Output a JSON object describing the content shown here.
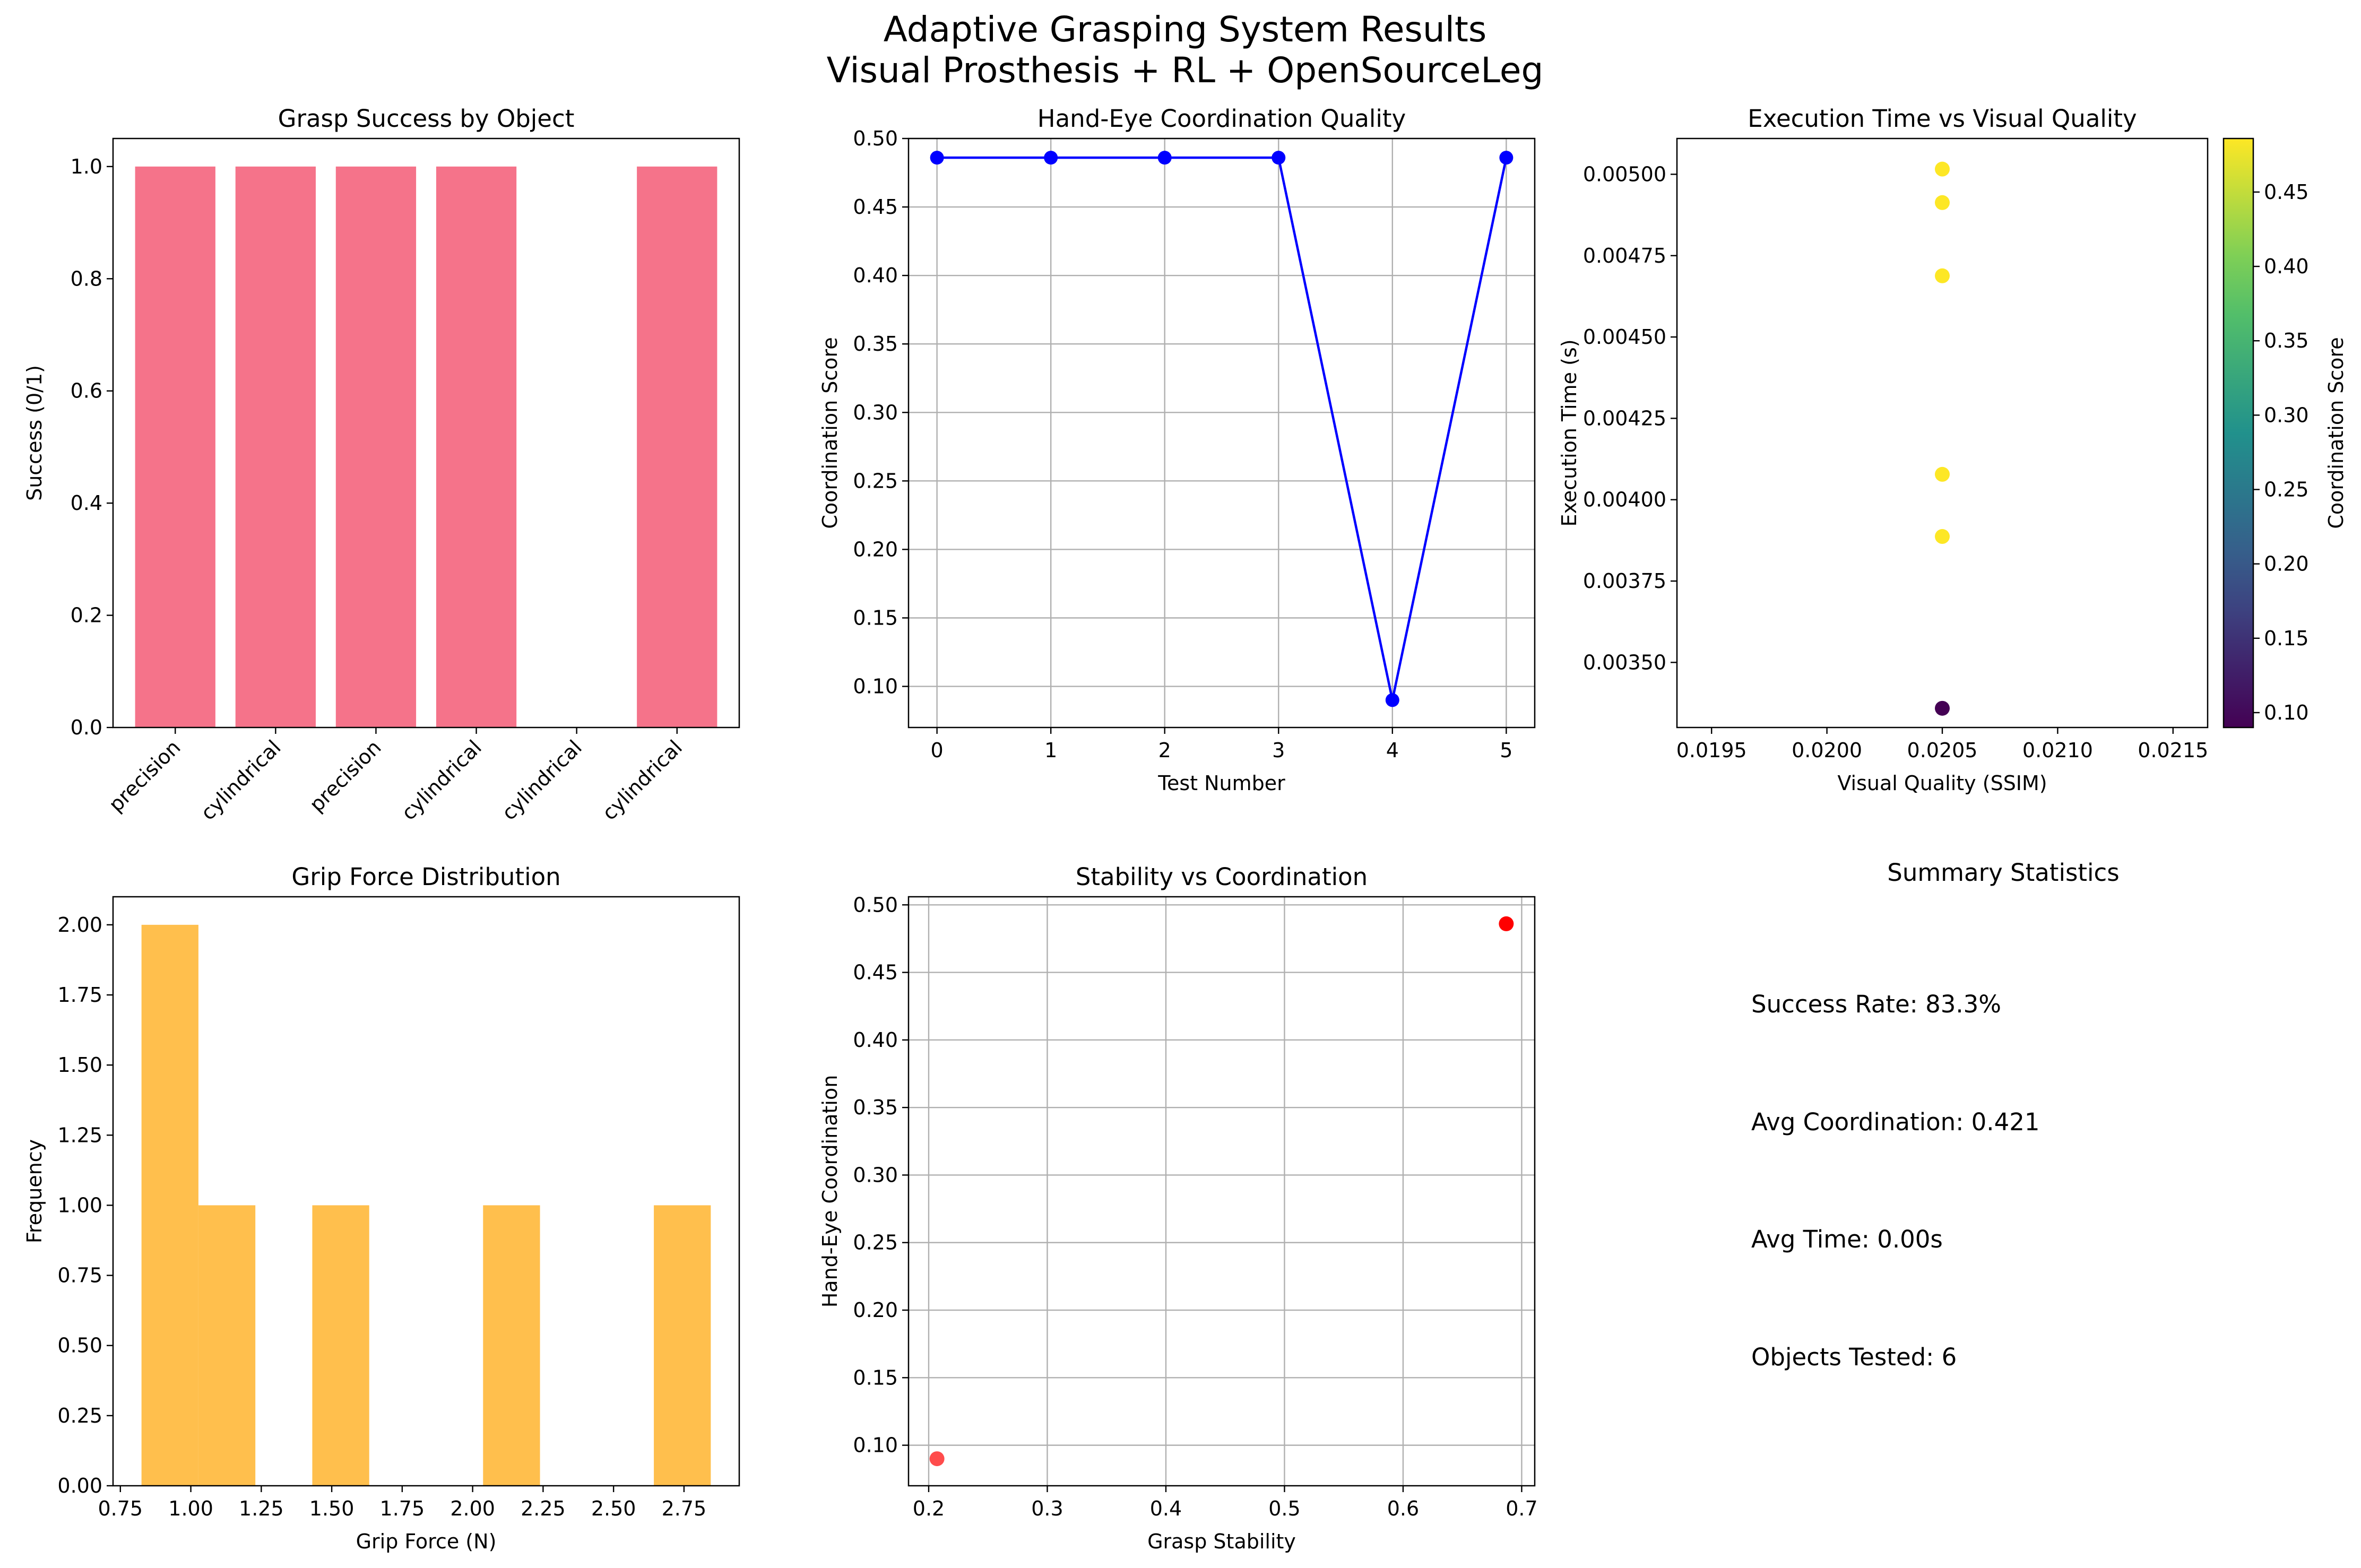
{
  "figure": {
    "title_line1": "Adaptive Grasping System Results",
    "title_line2": "Visual Prosthesis + RL + OpenSourceLeg"
  },
  "colors": {
    "bar": "#f5738a",
    "hist": "#ffbf4d",
    "line": "#0000ff",
    "scatter_red": "#ff0000",
    "grid": "#b0b0b0"
  },
  "chart_data": [
    {
      "id": "grasp-success",
      "type": "bar",
      "title": "Grasp Success by Object",
      "xlabel": "",
      "ylabel": "Success (0/1)",
      "categories": [
        "precision",
        "cylindrical",
        "precision",
        "cylindrical",
        "cylindrical",
        "cylindrical"
      ],
      "values": [
        1,
        1,
        1,
        1,
        0,
        1
      ],
      "ylim": [
        0,
        1.05
      ],
      "yticks": [
        "0.0",
        "0.2",
        "0.4",
        "0.6",
        "0.8",
        "1.0"
      ],
      "grid": false
    },
    {
      "id": "hand-eye",
      "type": "line",
      "title": "Hand-Eye Coordination Quality",
      "xlabel": "Test Number",
      "ylabel": "Coordination Score",
      "x": [
        0,
        1,
        2,
        3,
        4,
        5
      ],
      "y": [
        0.486,
        0.486,
        0.486,
        0.486,
        0.09,
        0.486
      ],
      "xlim": [
        -0.25,
        5.25
      ],
      "ylim": [
        0.07,
        0.5
      ],
      "xticks": [
        "0",
        "1",
        "2",
        "3",
        "4",
        "5"
      ],
      "yticks": [
        "0.10",
        "0.15",
        "0.20",
        "0.25",
        "0.30",
        "0.35",
        "0.40",
        "0.45",
        "0.50"
      ],
      "grid": true
    },
    {
      "id": "exec-time",
      "type": "scatter",
      "title": "Execution Time vs Visual Quality",
      "xlabel": "Visual Quality (SSIM)",
      "ylabel": "Execution Time (s)",
      "x": [
        0.0205,
        0.0205,
        0.0205,
        0.0205,
        0.0205,
        0.0205
      ],
      "y": [
        0.005016,
        0.004913,
        0.004688,
        0.004078,
        0.003887,
        0.003359
      ],
      "color_values": [
        0.486,
        0.486,
        0.486,
        0.486,
        0.486,
        0.09
      ],
      "xlim": [
        0.01935,
        0.02165
      ],
      "ylim": [
        0.0033,
        0.00511
      ],
      "xticks": [
        "0.0195",
        "0.0200",
        "0.0205",
        "0.0210",
        "0.0215"
      ],
      "yticks": [
        "0.00350",
        "0.00375",
        "0.00400",
        "0.00425",
        "0.00450",
        "0.00475",
        "0.00500"
      ],
      "colorbar": {
        "label": "Coordination Score",
        "range": [
          0.09,
          0.486
        ],
        "ticks": [
          "0.10",
          "0.15",
          "0.20",
          "0.25",
          "0.30",
          "0.35",
          "0.40",
          "0.45"
        ]
      },
      "grid": false
    },
    {
      "id": "grip-force",
      "type": "histogram",
      "title": "Grip Force Distribution",
      "xlabel": "Grip Force (N)",
      "ylabel": "Frequency",
      "bin_edges": [
        0.825,
        1.027,
        1.229,
        1.431,
        1.633,
        1.835,
        2.037,
        2.239,
        2.441,
        2.643,
        2.845
      ],
      "counts": [
        2,
        1,
        0,
        1,
        0,
        0,
        1,
        0,
        0,
        1
      ],
      "xlim": [
        0.724,
        2.946
      ],
      "ylim": [
        0,
        2.1
      ],
      "xticks": [
        "0.75",
        "1.00",
        "1.25",
        "1.50",
        "1.75",
        "2.00",
        "2.25",
        "2.50",
        "2.75"
      ],
      "yticks": [
        "0.00",
        "0.25",
        "0.50",
        "0.75",
        "1.00",
        "1.25",
        "1.50",
        "1.75",
        "2.00"
      ],
      "grid": false
    },
    {
      "id": "stability",
      "type": "scatter",
      "title": "Stability vs Coordination",
      "xlabel": "Grasp Stability",
      "ylabel": "Hand-Eye Coordination",
      "x": [
        0.207,
        0.687
      ],
      "y": [
        0.09,
        0.486
      ],
      "xlim": [
        0.183,
        0.711
      ],
      "ylim": [
        0.07,
        0.506
      ],
      "xticks": [
        "0.2",
        "0.3",
        "0.4",
        "0.5",
        "0.6",
        "0.7"
      ],
      "yticks": [
        "0.10",
        "0.15",
        "0.20",
        "0.25",
        "0.30",
        "0.35",
        "0.40",
        "0.45",
        "0.50"
      ],
      "grid": true
    }
  ],
  "summary": {
    "title": "Summary Statistics",
    "lines": [
      "Success Rate: 83.3%",
      "Avg Coordination: 0.421",
      "Avg Time: 0.00s",
      "Objects Tested: 6"
    ]
  }
}
